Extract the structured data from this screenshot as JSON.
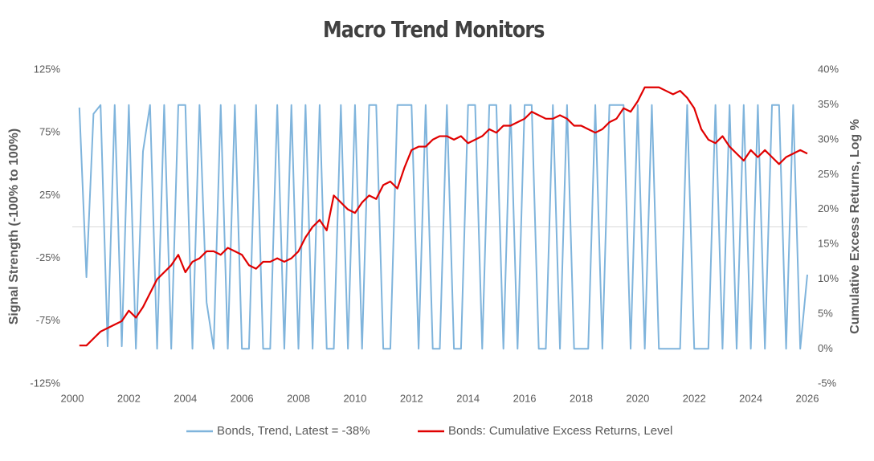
{
  "chart_data": {
    "type": "line",
    "title": "Macro Trend Monitors",
    "y_label": "Signal Strength (-100% to 100%)",
    "y2_label": "Cumulative Excess Returns, Log %",
    "xlim": [
      2000,
      2026
    ],
    "xticks": [
      2000,
      2002,
      2004,
      2006,
      2008,
      2010,
      2012,
      2014,
      2016,
      2018,
      2020,
      2022,
      2024,
      2026
    ],
    "ylim": [
      -125,
      125
    ],
    "yticks": [
      {
        "value": -125,
        "label": "-125%"
      },
      {
        "value": -75,
        "label": "-75%"
      },
      {
        "value": -25,
        "label": "-25%"
      },
      {
        "value": 25,
        "label": "25%"
      },
      {
        "value": 75,
        "label": "75%"
      },
      {
        "value": 125,
        "label": "125%"
      }
    ],
    "y2lim": [
      -5,
      40
    ],
    "y2ticks": [
      {
        "value": -5,
        "label": "-5%"
      },
      {
        "value": 0,
        "label": "0%"
      },
      {
        "value": 5,
        "label": "5%"
      },
      {
        "value": 10,
        "label": "10%"
      },
      {
        "value": 15,
        "label": "15%"
      },
      {
        "value": 20,
        "label": "20%"
      },
      {
        "value": 25,
        "label": "25%"
      },
      {
        "value": 30,
        "label": "30%"
      },
      {
        "value": 35,
        "label": "35%"
      },
      {
        "value": 40,
        "label": "40%"
      }
    ],
    "zero_line": true,
    "legend": "bottom",
    "x": [
      2000.25,
      2000.5,
      2000.75,
      2001,
      2001.25,
      2001.5,
      2001.75,
      2002,
      2002.25,
      2002.5,
      2002.75,
      2003,
      2003.25,
      2003.5,
      2003.75,
      2004,
      2004.25,
      2004.5,
      2004.75,
      2005,
      2005.25,
      2005.5,
      2005.75,
      2006,
      2006.25,
      2006.5,
      2006.75,
      2007,
      2007.25,
      2007.5,
      2007.75,
      2008,
      2008.25,
      2008.5,
      2008.75,
      2009,
      2009.25,
      2009.5,
      2009.75,
      2010,
      2010.25,
      2010.5,
      2010.75,
      2011,
      2011.25,
      2011.5,
      2011.75,
      2012,
      2012.25,
      2012.5,
      2012.75,
      2013,
      2013.25,
      2013.5,
      2013.75,
      2014,
      2014.25,
      2014.5,
      2014.75,
      2015,
      2015.25,
      2015.5,
      2015.75,
      2016,
      2016.25,
      2016.5,
      2016.75,
      2017,
      2017.25,
      2017.5,
      2017.75,
      2018,
      2018.25,
      2018.5,
      2018.75,
      2019,
      2019.25,
      2019.5,
      2019.75,
      2020,
      2020.25,
      2020.5,
      2020.75,
      2021,
      2021.25,
      2021.5,
      2021.75,
      2022,
      2022.25,
      2022.5,
      2022.75,
      2023,
      2023.25,
      2023.5,
      2023.75,
      2024,
      2024.25,
      2024.5,
      2024.75,
      2025,
      2025.25,
      2025.5,
      2025.75,
      2026
    ],
    "series": [
      {
        "name": "Bonds,  Trend, Latest = -38%",
        "color": "#7fb4dc",
        "axis": "y",
        "values": [
          95,
          -40,
          90,
          97,
          -95,
          97,
          -95,
          97,
          -97,
          60,
          97,
          -97,
          97,
          -97,
          97,
          97,
          -97,
          97,
          -60,
          -97,
          97,
          -97,
          97,
          -97,
          -97,
          97,
          -97,
          -97,
          97,
          -97,
          97,
          -97,
          97,
          -97,
          97,
          -97,
          -97,
          97,
          -97,
          97,
          -97,
          97,
          97,
          -97,
          -97,
          97,
          97,
          97,
          -97,
          97,
          -97,
          -97,
          97,
          -97,
          -97,
          97,
          97,
          -97,
          97,
          97,
          -97,
          97,
          -97,
          97,
          97,
          -97,
          -97,
          97,
          -97,
          97,
          -97,
          -97,
          -97,
          97,
          -97,
          97,
          97,
          97,
          -97,
          97,
          -97,
          97,
          -97,
          -97,
          -97,
          -97,
          97,
          -97,
          -97,
          -97,
          97,
          -97,
          97,
          -97,
          97,
          -97,
          97,
          -97,
          97,
          97,
          -97,
          97,
          -97,
          -38
        ]
      },
      {
        "name": "Bonds: Cumulative Excess Returns, Level",
        "color": "#e00000",
        "axis": "y2",
        "values": [
          0.5,
          0.5,
          1.5,
          2.5,
          3,
          3.5,
          4,
          5.5,
          4.5,
          6,
          8,
          10,
          11,
          12,
          13.5,
          11,
          12.5,
          13,
          14,
          14,
          13.5,
          14.5,
          14,
          13.5,
          12,
          11.5,
          12.5,
          12.5,
          13,
          12.5,
          13,
          14,
          16,
          17.5,
          18.5,
          17,
          22,
          21,
          20,
          19.5,
          21,
          22,
          21.5,
          23.5,
          24,
          23,
          26,
          28.5,
          29,
          29,
          30,
          30.5,
          30.5,
          30,
          30.5,
          29.5,
          30,
          30.5,
          31.5,
          31,
          32,
          32,
          32.5,
          33,
          34,
          33.5,
          33,
          33,
          33.5,
          33,
          32,
          32,
          31.5,
          31,
          31.5,
          32.5,
          33,
          34.5,
          34,
          35.5,
          37.5,
          37.5,
          37.5,
          37,
          36.5,
          37,
          36,
          34.5,
          31.5,
          30,
          29.5,
          30.5,
          29,
          28,
          27,
          28.5,
          27.5,
          28.5,
          27.5,
          26.5,
          27.5,
          28,
          28.5,
          28
        ]
      }
    ]
  }
}
